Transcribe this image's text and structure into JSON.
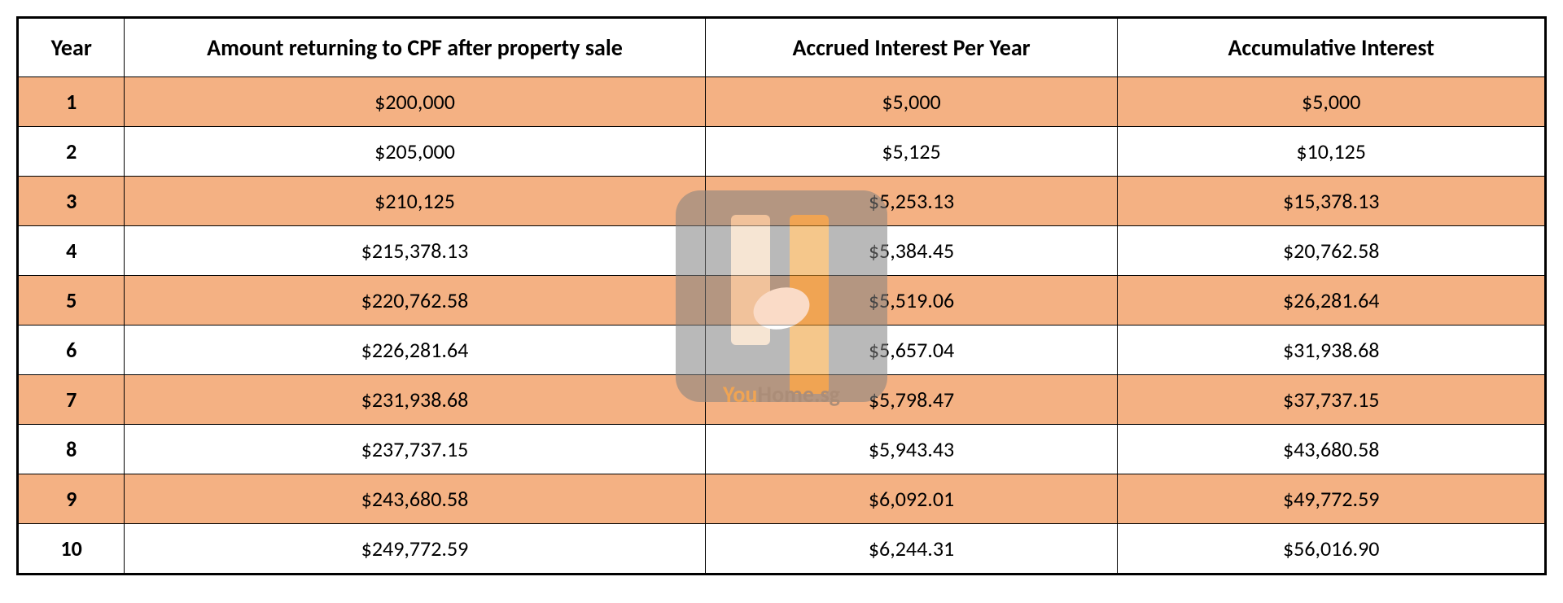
{
  "table": {
    "columns": [
      "Year",
      "Amount returning to CPF after property sale",
      "Accrued Interest Per Year",
      "Accumulative Interest"
    ],
    "rows": [
      [
        "1",
        "$200,000",
        "$5,000",
        "$5,000"
      ],
      [
        "2",
        "$205,000",
        "$5,125",
        "$10,125"
      ],
      [
        "3",
        "$210,125",
        "$5,253.13",
        "$15,378.13"
      ],
      [
        "4",
        "$215,378.13",
        "$5,384.45",
        "$20,762.58"
      ],
      [
        "5",
        "$220,762.58",
        "$5,519.06",
        "$26,281.64"
      ],
      [
        "6",
        "$226,281.64",
        "$5,657.04",
        "$31,938.68"
      ],
      [
        "7",
        "$231,938.68",
        "$5,798.47",
        "$37,737.15"
      ],
      [
        "8",
        "$237,737.15",
        "$5,943.43",
        "$43,680.58"
      ],
      [
        "9",
        "$243,680.58",
        "$6,092.01",
        "$49,772.59"
      ],
      [
        "10",
        "$249,772.59",
        "$6,244.31",
        "$56,016.90"
      ]
    ],
    "header_bg": "#ffffff",
    "odd_row_bg": "#f4b183",
    "even_row_bg": "#ffffff",
    "border_color": "#000000",
    "font_family": "Calibri, Arial, sans-serif",
    "header_fontsize": 28,
    "cell_fontsize": 26
  },
  "watermark": {
    "text_left": "You",
    "text_right": "Home.sg",
    "badge_color": "#808080",
    "accent_orange": "#ed9b2d",
    "accent_tan": "#f0d0b0",
    "text_gray": "#707070"
  }
}
